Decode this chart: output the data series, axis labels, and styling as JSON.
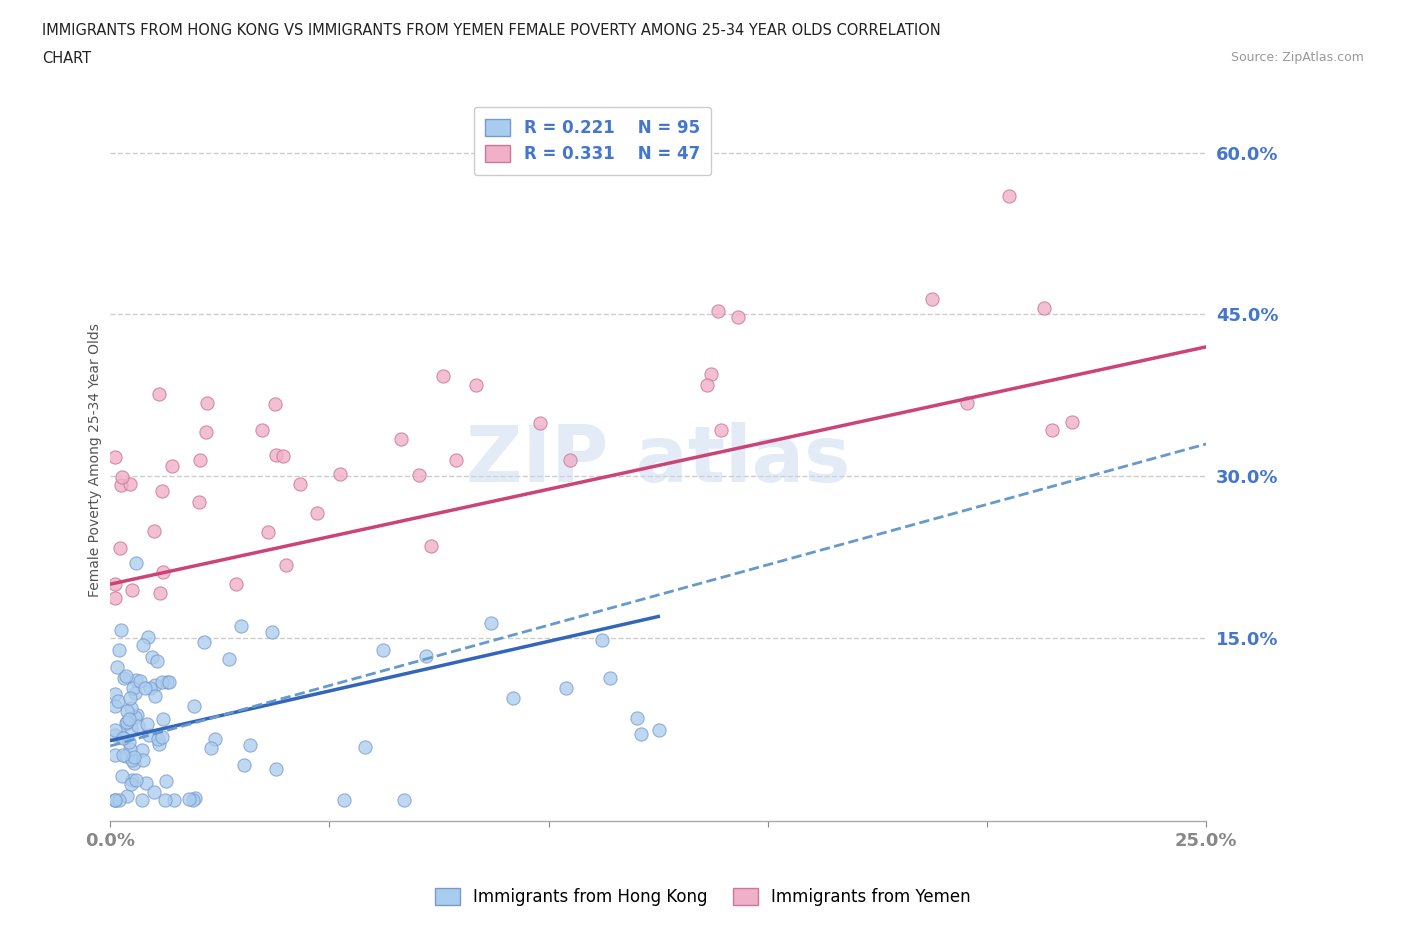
{
  "title_line1": "IMMIGRANTS FROM HONG KONG VS IMMIGRANTS FROM YEMEN FEMALE POVERTY AMONG 25-34 YEAR OLDS CORRELATION",
  "title_line2": "CHART",
  "source": "Source: ZipAtlas.com",
  "ylabel": "Female Poverty Among 25-34 Year Olds",
  "xlim": [
    0.0,
    0.25
  ],
  "ylim": [
    -0.02,
    0.65
  ],
  "ytick_positions": [
    0.15,
    0.3,
    0.45,
    0.6
  ],
  "ytick_labels": [
    "15.0%",
    "30.0%",
    "45.0%",
    "60.0%"
  ],
  "hk_color": "#aaccee",
  "hk_edge_color": "#7799cc",
  "yemen_color": "#f0b0c8",
  "yemen_edge_color": "#cc7799",
  "hk_line_color": "#3366bb",
  "hk_dash_color": "#6699cc",
  "yemen_line_color": "#cc4477",
  "legend_r_hk": "R = 0.221",
  "legend_n_hk": "N = 95",
  "legend_r_yemen": "R = 0.331",
  "legend_n_yemen": "N = 47",
  "grid_color": "#cccccc",
  "title_color": "#222222",
  "axis_label_color": "#555555",
  "tick_label_color": "#4477cc",
  "watermark_color": "#c8d8ee",
  "background_color": "#ffffff"
}
